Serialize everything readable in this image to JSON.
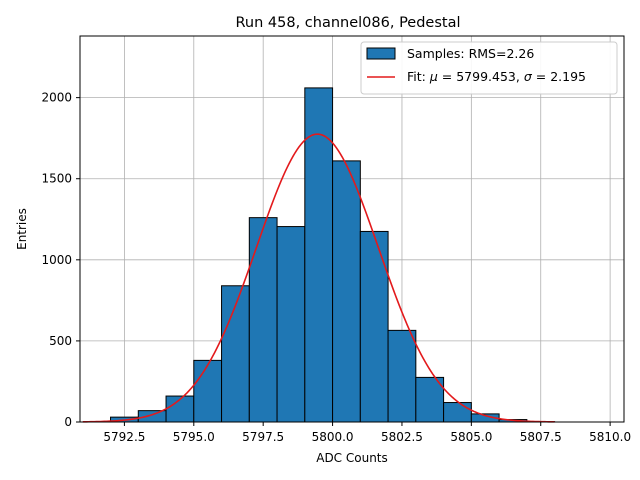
{
  "chart_data": {
    "type": "bar",
    "title": "Run 458, channel086, Pedestal",
    "xlabel": "ADC Counts",
    "ylabel": "Entries",
    "xlim": [
      5790.9,
      5810.5
    ],
    "ylim": [
      0,
      2380
    ],
    "grid": true,
    "legend_position": "top-right",
    "xticks": [
      5792.5,
      5795.0,
      5797.5,
      5800.0,
      5802.5,
      5805.0,
      5807.5,
      5810.0
    ],
    "xtick_labels": [
      "5792.5",
      "5795.0",
      "5797.5",
      "5800.0",
      "5802.5",
      "5805.0",
      "5807.5",
      "5810.0"
    ],
    "yticks": [
      0,
      500,
      1000,
      1500,
      2000
    ],
    "ytick_labels": [
      "0",
      "500",
      "1000",
      "1500",
      "2000"
    ],
    "bins": {
      "edges": [
        5792.0,
        5793.0,
        5794.0,
        5795.0,
        5796.0,
        5797.0,
        5798.0,
        5799.0,
        5800.0,
        5801.0,
        5802.0,
        5803.0,
        5804.0,
        5805.0,
        5806.0,
        5807.0,
        5808.0,
        5809.0,
        5810.0
      ],
      "counts": [
        30,
        70,
        160,
        380,
        840,
        1260,
        1205,
        2060,
        1610,
        1175,
        565,
        275,
        120,
        50,
        15,
        2,
        0,
        0
      ],
      "name": "Samples: RMS=2.26",
      "color": "#1f77b4"
    },
    "fit": {
      "name_prefix": "Fit: ",
      "mu_label": "μ",
      "mu_value": "= 5799.453,",
      "sigma_label": "σ",
      "sigma_value": "= 2.195",
      "mu": 5799.453,
      "sigma": 2.195,
      "amplitude": 1775,
      "x_start": 5791.0,
      "x_end": 5808.0,
      "color": "#e31a1c"
    }
  }
}
